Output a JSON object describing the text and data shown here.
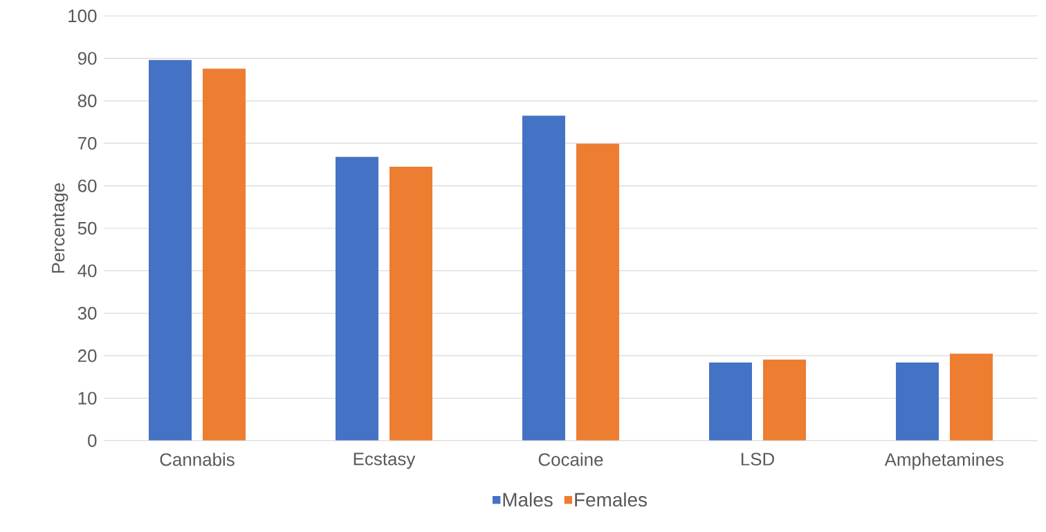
{
  "chart_data": {
    "type": "bar",
    "ylabel": "Percentage",
    "categories": [
      "Cannabis",
      "Ecstasy",
      "Cocaine",
      "LSD",
      "Amphetamines"
    ],
    "series": [
      {
        "name": "Males",
        "color": "#4472c4",
        "values": [
          89.6,
          66.8,
          76.5,
          18.4,
          18.4
        ]
      },
      {
        "name": "Females",
        "color": "#ed7d31",
        "values": [
          87.6,
          64.5,
          69.9,
          19.1,
          20.5
        ]
      }
    ],
    "ylim": [
      0,
      100
    ],
    "yticks": [
      0,
      10,
      20,
      30,
      40,
      50,
      60,
      70,
      80,
      90,
      100
    ],
    "grid": "y",
    "legend": "bottom"
  }
}
